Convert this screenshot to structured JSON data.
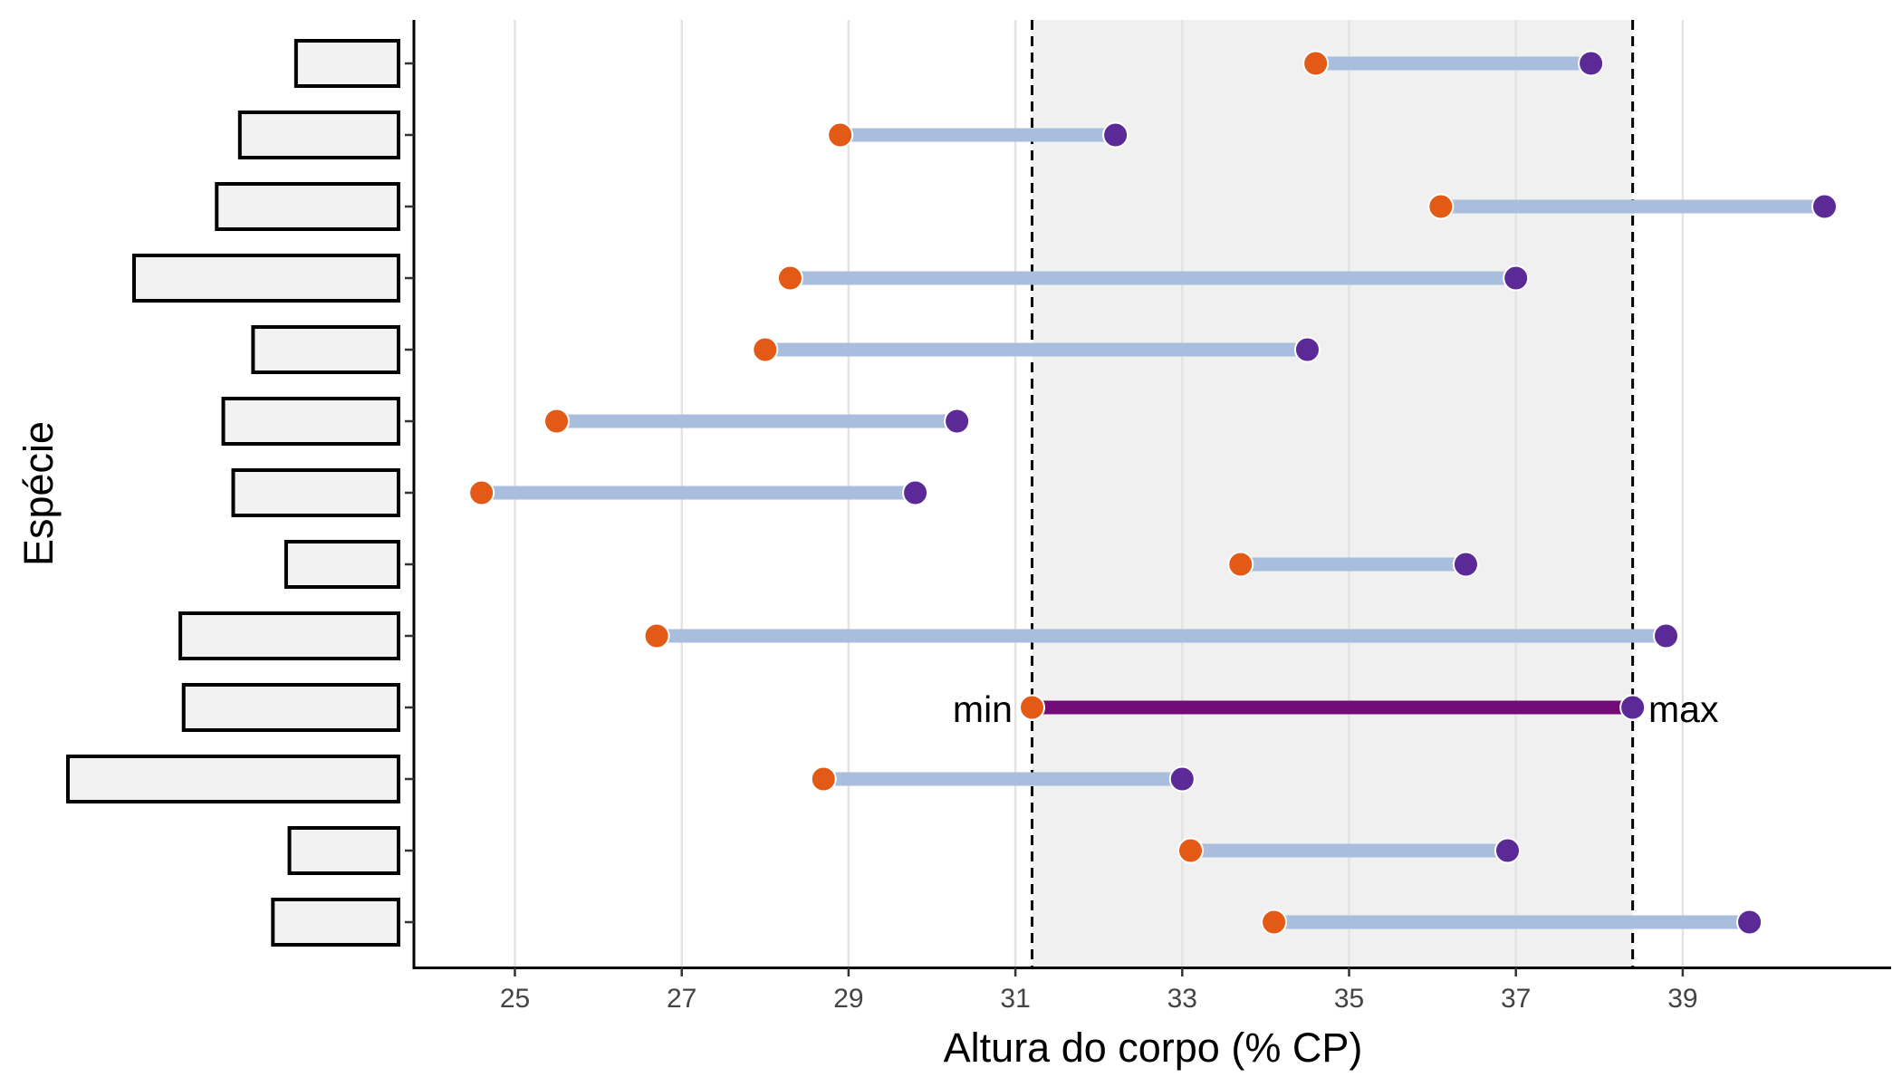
{
  "chart_data": {
    "type": "dumbbell",
    "xlabel": "Altura do corpo (% CP)",
    "ylabel": "Espécie",
    "xlim": [
      23.8,
      41.6
    ],
    "x_ticks": [
      "25",
      "27",
      "29",
      "31",
      "33",
      "35",
      "37",
      "39"
    ],
    "grid": "vertical major gridlines",
    "reference_range": {
      "min": 31.2,
      "max": 38.4
    },
    "annotations": {
      "min": "min",
      "max": "max"
    },
    "species": [
      {
        "min": 34.6,
        "max": 37.9,
        "icon_length": 0.31
      },
      {
        "min": 28.9,
        "max": 32.2,
        "icon_length": 0.48
      },
      {
        "min": 36.1,
        "max": 40.7,
        "icon_length": 0.55
      },
      {
        "min": 28.3,
        "max": 37.0,
        "icon_length": 0.8
      },
      {
        "min": 28.0,
        "max": 34.5,
        "icon_length": 0.44
      },
      {
        "min": 25.5,
        "max": 30.3,
        "icon_length": 0.53
      },
      {
        "min": 24.6,
        "max": 29.8,
        "icon_length": 0.5
      },
      {
        "min": 33.7,
        "max": 36.4,
        "icon_length": 0.34
      },
      {
        "min": 26.7,
        "max": 38.8,
        "icon_length": 0.66
      },
      {
        "min": 31.2,
        "max": 38.4,
        "icon_length": 0.65,
        "highlight": true
      },
      {
        "min": 28.7,
        "max": 33.0,
        "icon_length": 1.0
      },
      {
        "min": 33.1,
        "max": 36.9,
        "icon_length": 0.33
      },
      {
        "min": 34.1,
        "max": 39.8,
        "icon_length": 0.38
      }
    ],
    "colors": {
      "min_point": "#e35a16",
      "max_point": "#5b2a96",
      "segment": "#a9bedd",
      "highlight_segment": "#730a7a",
      "shaded_range": "#f0f0f0",
      "gridline": "#e3e3e3",
      "icon_fill": "#f2f2f2"
    }
  }
}
